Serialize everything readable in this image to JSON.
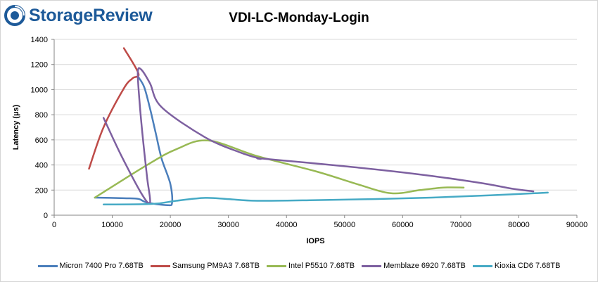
{
  "brand": {
    "name": "StorageReview",
    "color": "#1d5a99",
    "icon": "storagereview-logo-icon"
  },
  "chart_data": {
    "type": "line",
    "title": "VDI-LC-Monday-Login",
    "xlabel": "IOPS",
    "ylabel": "Latency (µs)",
    "xlim": [
      0,
      90000
    ],
    "ylim": [
      0,
      1400
    ],
    "xticks": [
      0,
      10000,
      20000,
      30000,
      40000,
      50000,
      60000,
      70000,
      80000,
      90000
    ],
    "yticks": [
      0,
      200,
      400,
      600,
      800,
      1000,
      1200,
      1400
    ],
    "grid": "horizontal",
    "legend": "bottom",
    "series": [
      {
        "name": "Micron 7400 Pro 7.68TB",
        "color": "#4a7ebb",
        "x": [
          7000,
          12000,
          14500,
          16000,
          19500,
          20300,
          20000,
          18500,
          17500,
          16500,
          15500,
          14500
        ],
        "y": [
          140,
          135,
          130,
          100,
          80,
          100,
          250,
          450,
          650,
          850,
          1020,
          1100
        ]
      },
      {
        "name": "Samsung PM9A3 7.68TB",
        "color": "#be4b48",
        "x": [
          6000,
          8500,
          12000,
          13500,
          14500,
          12000
        ],
        "y": [
          370,
          700,
          1010,
          1090,
          1130,
          1330
        ]
      },
      {
        "name": "Intel P5510 7.68TB",
        "color": "#98b954",
        "x": [
          7000,
          16000,
          21000,
          26500,
          35000,
          45000,
          52000,
          58000,
          63000,
          67000,
          70500
        ],
        "y": [
          140,
          400,
          525,
          595,
          470,
          350,
          250,
          175,
          200,
          220,
          220
        ]
      },
      {
        "name": "Memblaze 6920 7.68TB",
        "color": "#7d60a0",
        "x": [
          8500,
          11500,
          15000,
          16500,
          16000,
          15300,
          14700,
          14400,
          15000,
          16500,
          18500,
          26000,
          32000,
          35500,
          36000,
          50000,
          62000,
          73000,
          79000,
          82500
        ],
        "y": [
          775,
          480,
          175,
          100,
          300,
          600,
          900,
          1140,
          1160,
          1050,
          860,
          620,
          500,
          450,
          450,
          390,
          330,
          260,
          210,
          190
        ]
      },
      {
        "name": "Kioxia CD6 7.68TB",
        "color": "#46aac5",
        "x": [
          8500,
          17000,
          21000,
          26000,
          30000,
          35000,
          45000,
          55000,
          65000,
          75000,
          85000
        ],
        "y": [
          85,
          90,
          115,
          138,
          128,
          115,
          120,
          128,
          140,
          158,
          180
        ]
      }
    ]
  }
}
